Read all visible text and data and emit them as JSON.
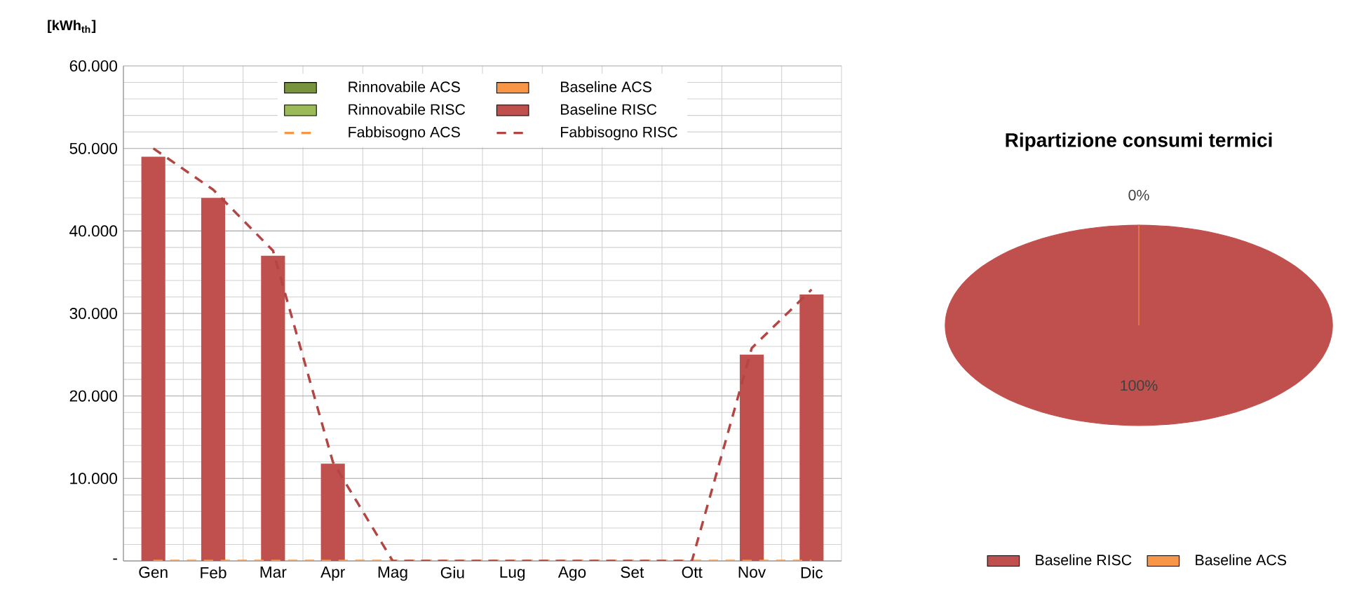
{
  "chart_data": [
    {
      "type": "bar",
      "stacked": true,
      "ylabel": "[kWh$_{th}$]",
      "categories": [
        "Gen",
        "Feb",
        "Mar",
        "Apr",
        "Mag",
        "Giu",
        "Lug",
        "Ago",
        "Set",
        "Ott",
        "Nov",
        "Dic"
      ],
      "series": [
        {
          "name": "Rinnovabile ACS",
          "color": "#77933c",
          "values": [
            0,
            0,
            0,
            0,
            0,
            0,
            0,
            0,
            0,
            0,
            0,
            0
          ]
        },
        {
          "name": "Baseline ACS",
          "color": "#f79646",
          "values": [
            0,
            0,
            0,
            0,
            0,
            0,
            0,
            0,
            0,
            0,
            0,
            0
          ]
        },
        {
          "name": "Rinnovabile RISC",
          "color": "#9bbb59",
          "values": [
            0,
            0,
            0,
            0,
            0,
            0,
            0,
            0,
            0,
            0,
            0,
            0
          ]
        },
        {
          "name": "Baseline RISC",
          "color": "#c0504d",
          "values": [
            49000,
            44000,
            37000,
            11800,
            0,
            0,
            0,
            0,
            0,
            0,
            25000,
            32300
          ]
        },
        {
          "name": "Fabbisogno ACS",
          "type": "line",
          "line_style": "dashed",
          "color": "#f79646",
          "values": [
            0,
            0,
            0,
            0,
            0,
            0,
            0,
            0,
            0,
            0,
            0,
            0
          ]
        },
        {
          "name": "Fabbisogno RISC",
          "type": "line",
          "line_style": "dashed",
          "color": "#b34542",
          "values": [
            50000,
            45000,
            37600,
            12000,
            0,
            0,
            0,
            0,
            0,
            0,
            25800,
            32900
          ]
        }
      ],
      "ylim": [
        0,
        60000
      ],
      "yticks": [
        {
          "value": 0,
          "label": "-"
        },
        {
          "value": 10000,
          "label": "10.000"
        },
        {
          "value": 20000,
          "label": "20.000"
        },
        {
          "value": 30000,
          "label": "30.000"
        },
        {
          "value": 40000,
          "label": "40.000"
        },
        {
          "value": 50000,
          "label": "50.000"
        },
        {
          "value": 60000,
          "label": "60.000"
        }
      ],
      "grid": true,
      "legend": "top"
    },
    {
      "type": "pie",
      "title": "Ripartizione consumi termici",
      "categories": [
        "Baseline RISC",
        "Baseline ACS"
      ],
      "values": [
        100,
        0
      ],
      "colors": [
        "#c0504d",
        "#f79646"
      ],
      "value_labels": [
        "100%",
        "0%"
      ],
      "legend": "bottom"
    }
  ]
}
